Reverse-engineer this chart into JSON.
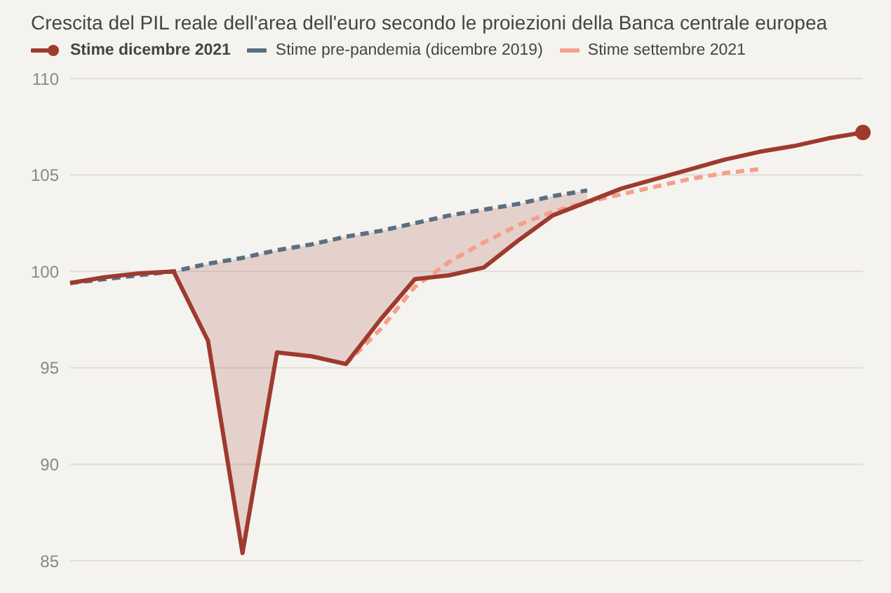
{
  "chart_data": {
    "type": "line",
    "title": "Crescita del PIL reale dell'area dell'euro secondo le proiezioni della Banca centrale europea",
    "categories": [
      null,
      null,
      null,
      null,
      null,
      null,
      null,
      null,
      null,
      null,
      null,
      null,
      null,
      null,
      null,
      null,
      null,
      null,
      null,
      null,
      null,
      null,
      null,
      null
    ],
    "series": [
      {
        "name": "Stime dicembre 2021",
        "color": "#9e3a2e",
        "line_style": "solid",
        "values": [
          99.4,
          99.7,
          99.9,
          100.0,
          96.4,
          85.4,
          95.8,
          95.6,
          95.2,
          97.5,
          99.6,
          99.8,
          100.2,
          101.6,
          102.9,
          103.6,
          104.3,
          104.8,
          105.3,
          105.8,
          106.2,
          106.5,
          106.9,
          107.2
        ],
        "lower": [
          null,
          null,
          null,
          100.0,
          96.4,
          85.4,
          95.8,
          95.6,
          95.2,
          97.5,
          99.6,
          99.8,
          100.2,
          101.6,
          102.9,
          103.6,
          null,
          null,
          null,
          null,
          null,
          null,
          null,
          null
        ],
        "upper": [
          null,
          null,
          null,
          100.0,
          100.4,
          100.7,
          101.1,
          101.4,
          101.8,
          102.1,
          102.5,
          102.9,
          103.2,
          103.5,
          103.9,
          104.2,
          null,
          null,
          null,
          null,
          null,
          null,
          null,
          null
        ]
      },
      {
        "name": "Stime pre-pandemia (dicembre 2019)",
        "color": "#5a6f82",
        "line_style": "dashed",
        "values": [
          99.4,
          99.6,
          99.8,
          100.0,
          100.4,
          100.7,
          101.1,
          101.4,
          101.8,
          102.1,
          102.5,
          102.9,
          103.2,
          103.5,
          103.9,
          104.2,
          null,
          null,
          null,
          null,
          null,
          null,
          null,
          null
        ]
      },
      {
        "name": "Stime settembre 2021",
        "color": "#f4a08c",
        "line_style": "dashed",
        "values": [
          null,
          null,
          null,
          null,
          null,
          null,
          null,
          null,
          95.2,
          97.0,
          99.2,
          100.5,
          101.5,
          102.4,
          103.1,
          103.6,
          104.0,
          104.4,
          104.8,
          105.1,
          105.3,
          null,
          null,
          null
        ]
      }
    ],
    "ylim": [
      85,
      110
    ],
    "yticks": [
      85,
      90,
      95,
      100,
      105,
      110
    ],
    "grid": "y",
    "legend": "top left",
    "tick_labels": "y"
  }
}
